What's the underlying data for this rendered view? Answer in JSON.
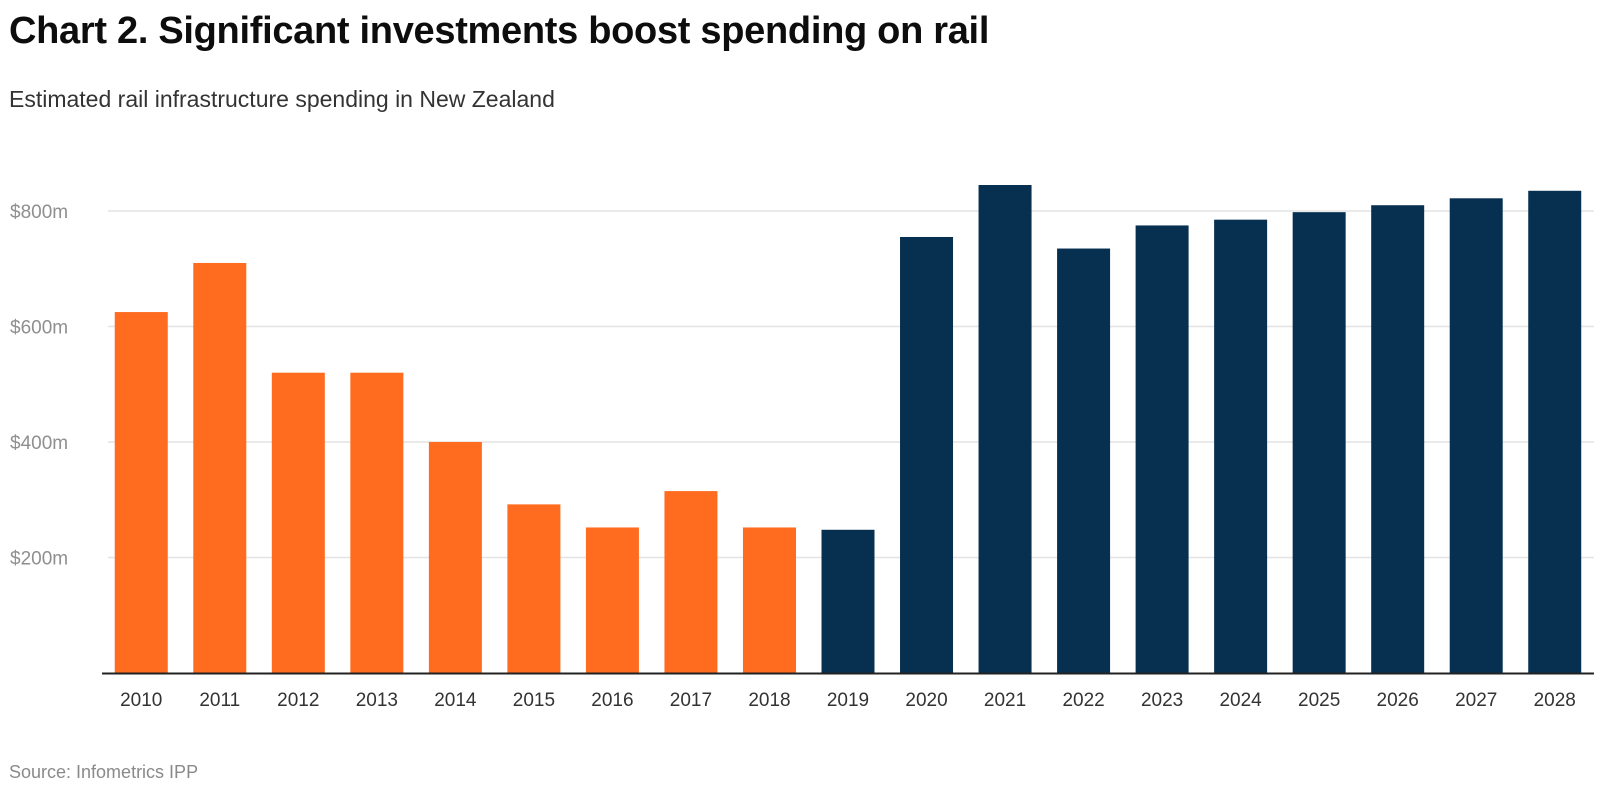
{
  "title": "Chart 2. Significant investments boost spending on rail",
  "subtitle": "Estimated rail infrastructure spending in New Zealand",
  "source": "Source: Infometrics IPP",
  "colors": {
    "historic": "#ff6b1f",
    "forecast": "#073050",
    "grid": "#e3e3e3",
    "axis": "#222222"
  },
  "chart_data": {
    "type": "bar",
    "title": "Chart 2. Significant investments boost spending on rail",
    "subtitle": "Estimated rail infrastructure spending in New Zealand",
    "xlabel": "",
    "ylabel": "",
    "ylim": [
      0,
      900
    ],
    "yticks": [
      200,
      400,
      600,
      800
    ],
    "ytick_labels": [
      "$200m",
      "$400m",
      "$600m",
      "$800m"
    ],
    "grid": true,
    "categories": [
      "2010",
      "2011",
      "2012",
      "2013",
      "2014",
      "2015",
      "2016",
      "2017",
      "2018",
      "2019",
      "2020",
      "2021",
      "2022",
      "2023",
      "2024",
      "2025",
      "2026",
      "2027",
      "2028"
    ],
    "values": [
      625,
      710,
      520,
      520,
      400,
      292,
      252,
      315,
      252,
      248,
      755,
      845,
      735,
      775,
      785,
      798,
      810,
      822,
      835
    ],
    "groups": [
      "historic",
      "historic",
      "historic",
      "historic",
      "historic",
      "historic",
      "historic",
      "historic",
      "historic",
      "forecast",
      "forecast",
      "forecast",
      "forecast",
      "forecast",
      "forecast",
      "forecast",
      "forecast",
      "forecast",
      "forecast"
    ]
  }
}
